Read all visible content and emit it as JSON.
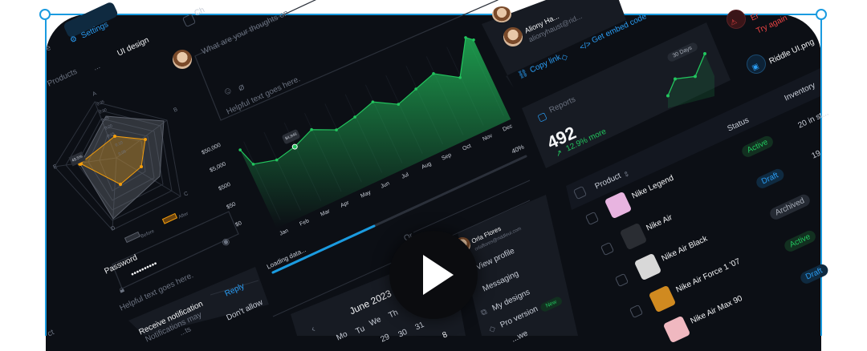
{
  "sidebar": {
    "settings_label": "Settings",
    "partial_item": "e",
    "partial_bottom": "ct"
  },
  "breadcrumb": {
    "items": [
      "Products",
      "...",
      "UI design"
    ]
  },
  "checkbox_partial": "Ch",
  "comment": {
    "placeholder": "What are your thoughts on",
    "helper": "Helpful text goes here."
  },
  "radar": {
    "axes": [
      "A",
      "B",
      "C",
      "D",
      "E"
    ],
    "ticks": [
      "0.35",
      "0.30",
      "0.25",
      "0.20",
      "0.15",
      "0.10",
      "0.05"
    ],
    "highlight_label": "49.5%",
    "legend": [
      "Before",
      "After"
    ],
    "colors": {
      "before": "#5b606b",
      "after": "#f59e0b"
    }
  },
  "password": {
    "label": "Password",
    "value": "••••••••••",
    "helper": "Helpful text goes here."
  },
  "notification": {
    "title": "Receive notification",
    "body": "Notifications may",
    "body2": "...ts",
    "reply": "Reply",
    "deny": "Don't allow"
  },
  "chart_data": {
    "type": "area",
    "categories": [
      "Jan",
      "Feb",
      "Mar",
      "Apr",
      "May",
      "Jun",
      "Jul",
      "Aug",
      "Sep",
      "Oct",
      "Nov",
      "Dec"
    ],
    "y_ticks": [
      "$0",
      "$50",
      "$500",
      "$5,000",
      "$50,000"
    ],
    "y_scale": "log",
    "x": [
      0,
      0.26,
      1.29,
      2.27,
      3.27,
      4.27,
      5.26,
      6.27,
      7.26,
      8.26,
      9.26,
      10.26,
      11.24,
      11.52
    ],
    "values": [
      50000,
      6000,
      3000,
      4946,
      13000,
      3800,
      5900,
      12000,
      2700,
      5700,
      12000,
      2200,
      107000,
      57000
    ],
    "tooltip": "$4,946",
    "color": "#22c55e",
    "grid": true
  },
  "loading": {
    "label": "Loading data...",
    "percent_label": "40%",
    "progress": 0.4,
    "divider": "Or"
  },
  "calendar": {
    "month": "June 2023",
    "days": [
      "Mo",
      "Tu",
      "We",
      "Th"
    ],
    "dates": [
      "29",
      "30",
      "31"
    ],
    "selected": "8"
  },
  "profile_menu": {
    "name": "Orla Flores",
    "email": "orlaflores@riddleui.com",
    "items": [
      "View profile",
      "Messaging",
      "My designs",
      "Pro version",
      "...we"
    ],
    "new_badge": "New"
  },
  "share": {
    "name": "Aliony Ha...",
    "email": "alionyhaust@rid...",
    "copy_link": "Copy link",
    "embed": "Get embed code"
  },
  "reports": {
    "title": "Reports",
    "value": "492",
    "delta": "12.9% more",
    "range": "30 Days",
    "spark": [
      1,
      3,
      3.3,
      6
    ]
  },
  "upload": {
    "error_partial": "Er",
    "retry": "Try again",
    "file": "Riddle UI.png"
  },
  "table": {
    "headers": {
      "product": "Product",
      "status": "Status",
      "inventory": "Inventory"
    },
    "top_row": {
      "status": "Active",
      "inventory": "20 in st..."
    },
    "rows": [
      {
        "name": "Nike Legend",
        "status": "Draft",
        "inventory": "19",
        "color": "#e8b4e0"
      },
      {
        "name": "Nike Air",
        "status": "Archived",
        "color": "#2a2d33"
      },
      {
        "name": "Nike Air Black",
        "status": "Active",
        "color": "#d8d8d8"
      },
      {
        "name": "Nike Air Force 1 '07",
        "status": "Draft",
        "color": "#d08a20"
      },
      {
        "name": "Nike Air Max 90",
        "status": "",
        "color": "#f0b8c0"
      }
    ]
  },
  "video": {
    "play_icon": "play-icon"
  }
}
